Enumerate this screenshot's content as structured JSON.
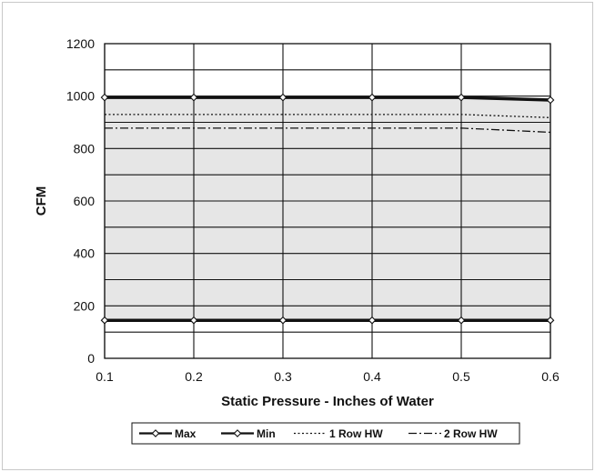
{
  "chart_data": {
    "type": "line",
    "xlabel": "Static Pressure - Inches of Water",
    "ylabel": "CFM",
    "x": [
      0.1,
      0.2,
      0.3,
      0.4,
      0.5,
      0.6
    ],
    "x_tick_labels": [
      "0.1",
      "0.2",
      "0.3",
      "0.4",
      "0.5",
      "0.6"
    ],
    "xlim": [
      0.1,
      0.6
    ],
    "ylim": [
      0,
      1200
    ],
    "y_ticks": [
      0,
      200,
      400,
      600,
      800,
      1000,
      1200
    ],
    "y_tick_labels": [
      "0",
      "200",
      "400",
      "600",
      "800",
      "1000",
      "1200"
    ],
    "grid": true,
    "shaded_region_between": [
      "Min",
      "Max"
    ],
    "colors": {
      "fill": "#e6e6e6",
      "line": "#111111",
      "grid": "#111111"
    },
    "legend_position": "bottom",
    "series": [
      {
        "name": "Max",
        "values": [
          995,
          995,
          995,
          995,
          995,
          985
        ],
        "style": "solid-diamond"
      },
      {
        "name": "Min",
        "values": [
          145,
          145,
          145,
          145,
          145,
          145
        ],
        "style": "solid-diamond"
      },
      {
        "name": "1 Row HW",
        "values": [
          930,
          930,
          930,
          930,
          930,
          918
        ],
        "style": "dotted"
      },
      {
        "name": "2 Row HW",
        "values": [
          878,
          878,
          878,
          878,
          878,
          862
        ],
        "style": "dash-dot"
      }
    ]
  }
}
